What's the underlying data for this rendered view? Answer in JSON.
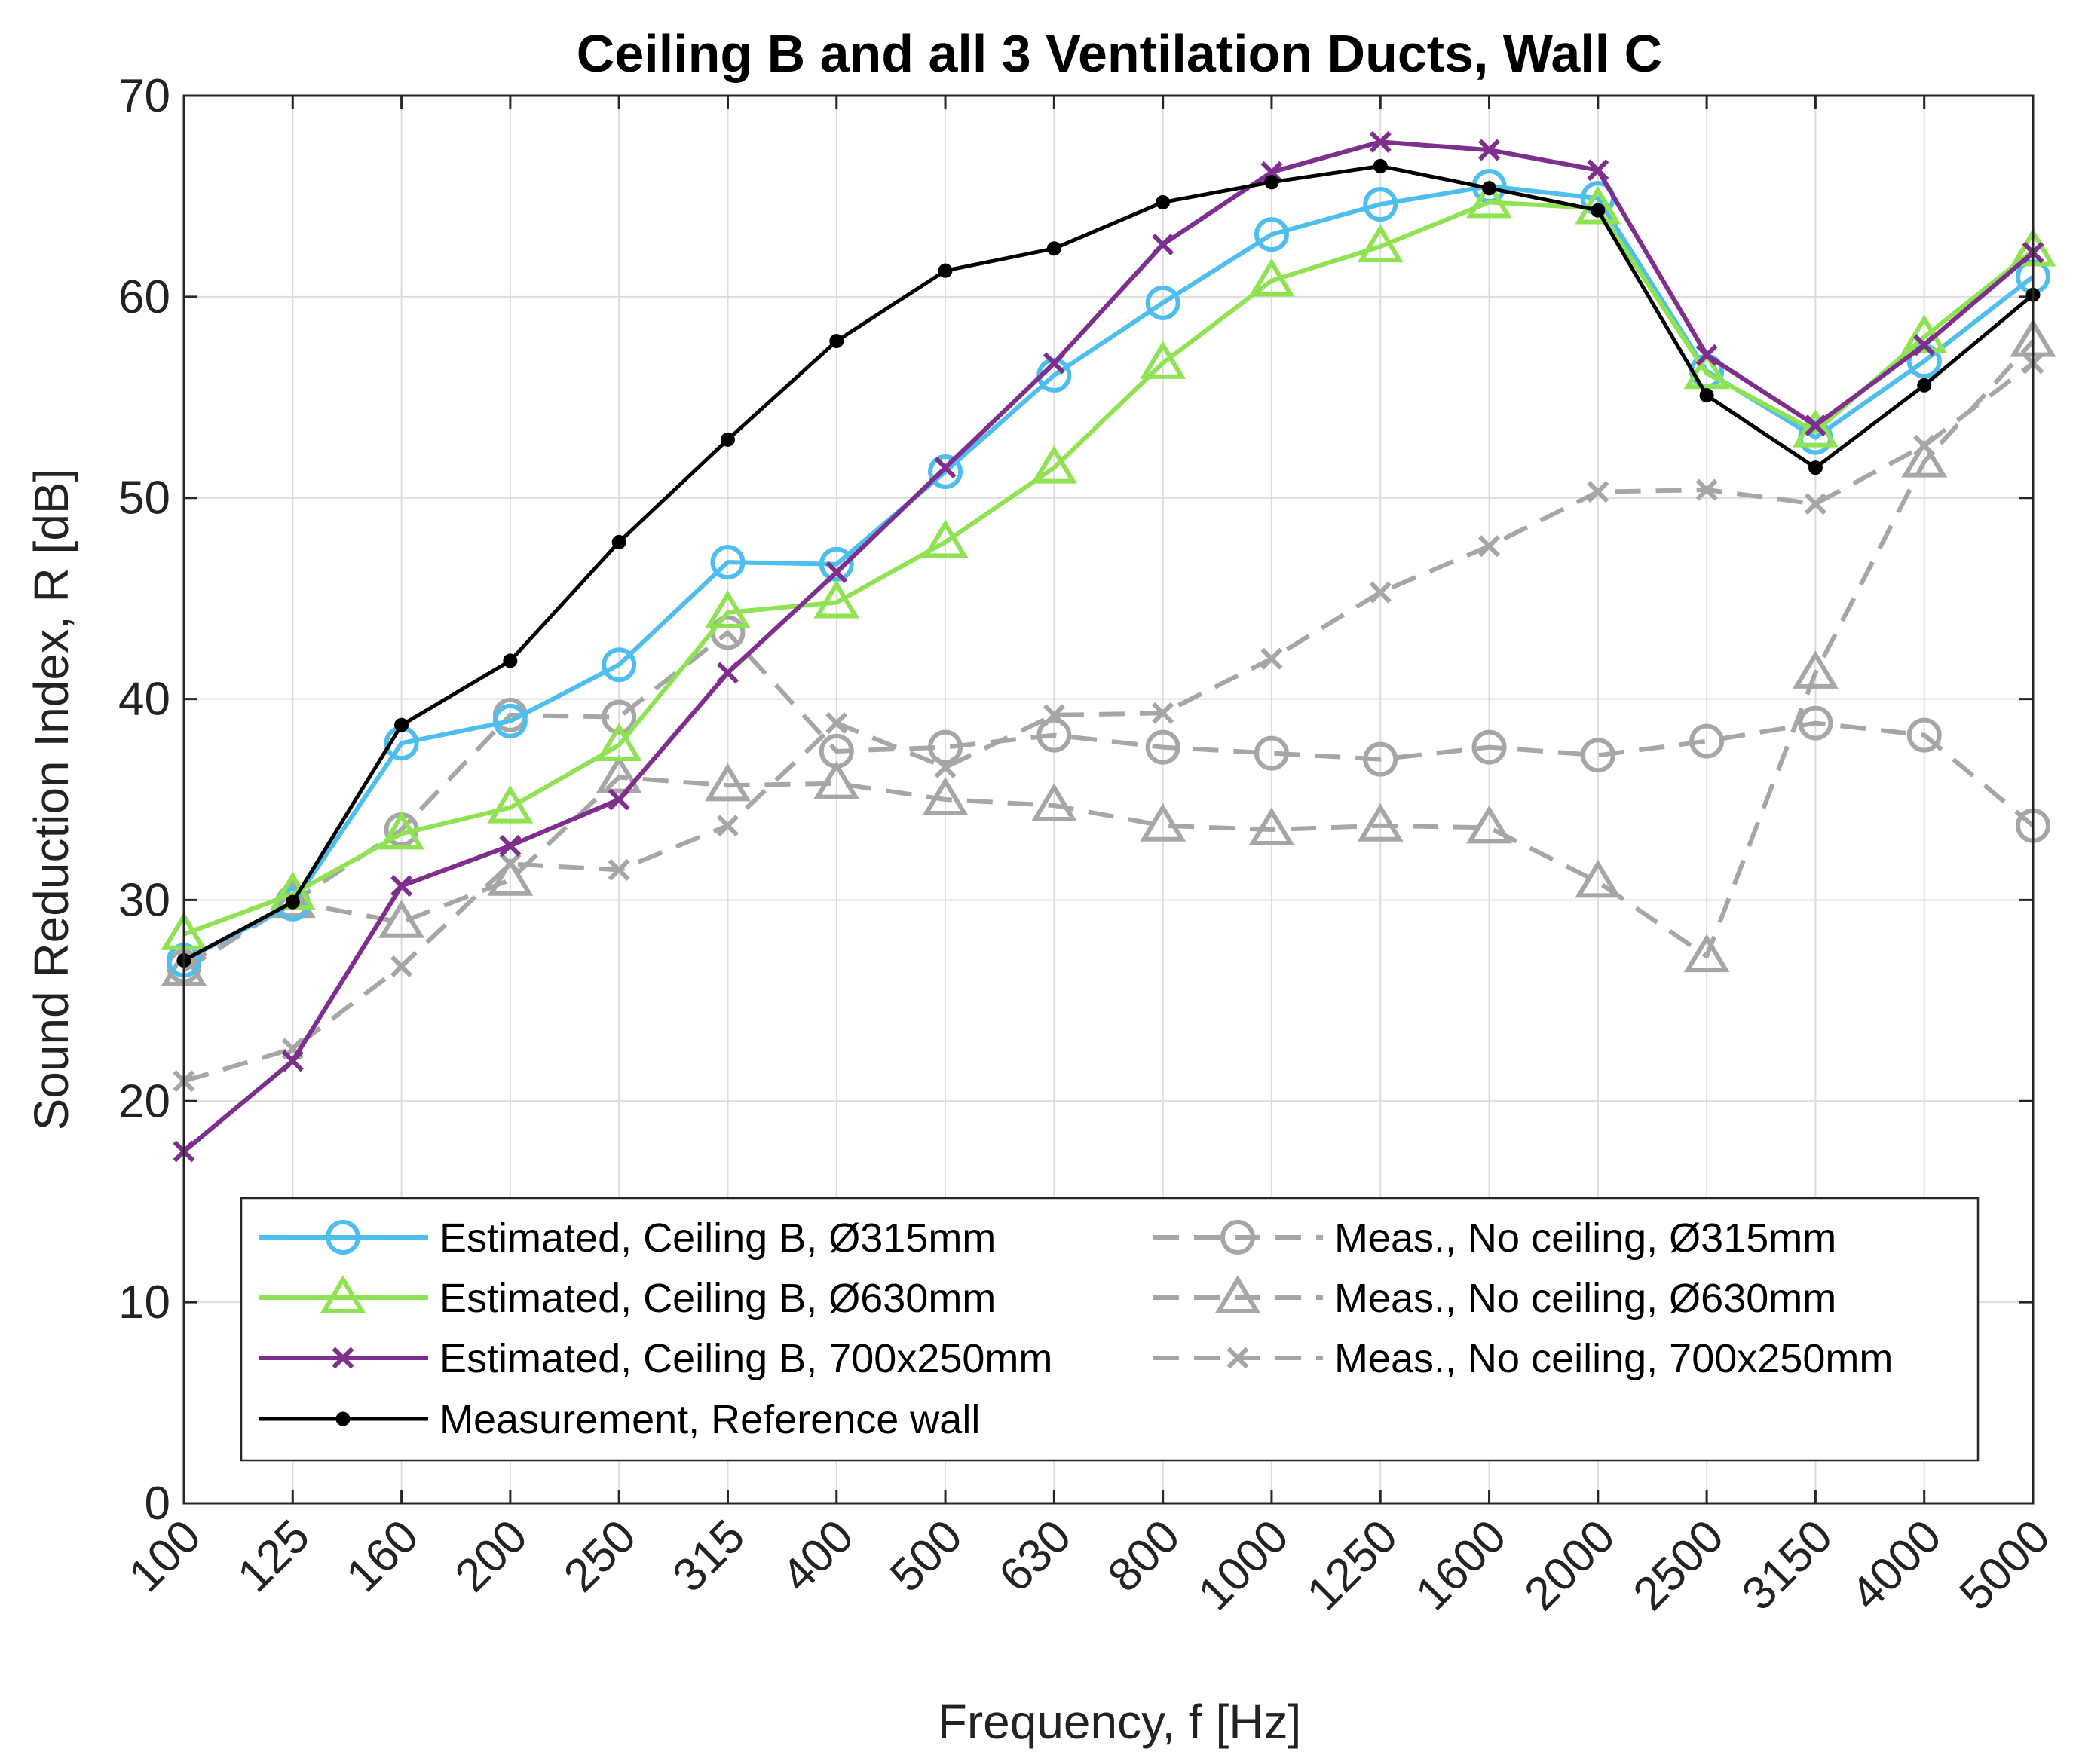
{
  "chart_data": {
    "type": "line",
    "title": "Ceiling B and all 3 Ventilation Ducts, Wall C",
    "xlabel": "Frequency, f [Hz]",
    "ylabel": "Sound Reduction Index, R [dB]",
    "ylim": [
      0,
      70
    ],
    "yticks": [
      0,
      10,
      20,
      30,
      40,
      50,
      60,
      70
    ],
    "categories": [
      "100",
      "125",
      "160",
      "200",
      "250",
      "315",
      "400",
      "500",
      "630",
      "800",
      "1000",
      "1250",
      "1600",
      "2000",
      "2500",
      "3150",
      "4000",
      "5000"
    ],
    "grid": true,
    "legend_position": "bottom",
    "series": [
      {
        "name": "Estimated, Ceiling B, Ø315mm",
        "color": "#4DBEEE",
        "marker": "circle",
        "dashed": false,
        "values": [
          27.0,
          29.8,
          37.8,
          38.9,
          41.7,
          46.8,
          46.7,
          51.3,
          56.1,
          59.7,
          63.1,
          64.6,
          65.5,
          64.9,
          56.3,
          53.0,
          56.8,
          61.0
        ]
      },
      {
        "name": "Estimated, Ceiling B, Ø630mm",
        "color": "#8FE353",
        "marker": "triangle",
        "dashed": false,
        "values": [
          28.3,
          30.3,
          33.3,
          34.6,
          37.7,
          44.3,
          44.8,
          47.8,
          51.5,
          56.7,
          60.8,
          62.5,
          64.7,
          64.4,
          56.2,
          53.3,
          58.0,
          62.3
        ]
      },
      {
        "name": "Estimated, Ceiling B, 700x250mm",
        "color": "#7E2F8E",
        "marker": "x",
        "dashed": false,
        "values": [
          17.5,
          22.0,
          30.7,
          32.7,
          35.0,
          41.3,
          46.3,
          51.5,
          56.7,
          62.6,
          66.2,
          67.7,
          67.3,
          66.3,
          57.1,
          53.6,
          57.6,
          62.2
        ]
      },
      {
        "name": "Measurement, Reference wall",
        "color": "#000000",
        "marker": "dot",
        "dashed": false,
        "values": [
          27.0,
          29.9,
          38.7,
          41.9,
          47.8,
          52.9,
          57.8,
          61.3,
          62.4,
          64.7,
          65.7,
          66.5,
          65.4,
          64.3,
          55.1,
          51.5,
          55.6,
          60.1
        ]
      },
      {
        "name": "Meas., No ceiling, Ø315mm",
        "color": "#A6A6A6",
        "marker": "circle",
        "dashed": true,
        "values": [
          26.7,
          29.9,
          33.5,
          39.2,
          39.1,
          43.3,
          37.4,
          37.6,
          38.2,
          37.6,
          37.3,
          37.0,
          37.6,
          37.2,
          37.9,
          38.8,
          38.2,
          33.7
        ]
      },
      {
        "name": "Meas., No ceiling, Ø630mm",
        "color": "#A6A6A6",
        "marker": "triangle",
        "dashed": true,
        "values": [
          26.5,
          29.9,
          28.9,
          31.0,
          36.1,
          35.7,
          35.8,
          35.0,
          34.7,
          33.7,
          33.5,
          33.7,
          33.6,
          30.9,
          27.2,
          41.3,
          51.8,
          57.8
        ]
      },
      {
        "name": "Meas., No ceiling, 700x250mm",
        "color": "#A6A6A6",
        "marker": "x",
        "dashed": true,
        "values": [
          21.0,
          22.6,
          26.7,
          31.8,
          31.5,
          33.7,
          38.8,
          36.6,
          39.2,
          39.3,
          42.0,
          45.3,
          47.6,
          50.3,
          50.4,
          49.7,
          52.6,
          56.7
        ]
      }
    ]
  }
}
